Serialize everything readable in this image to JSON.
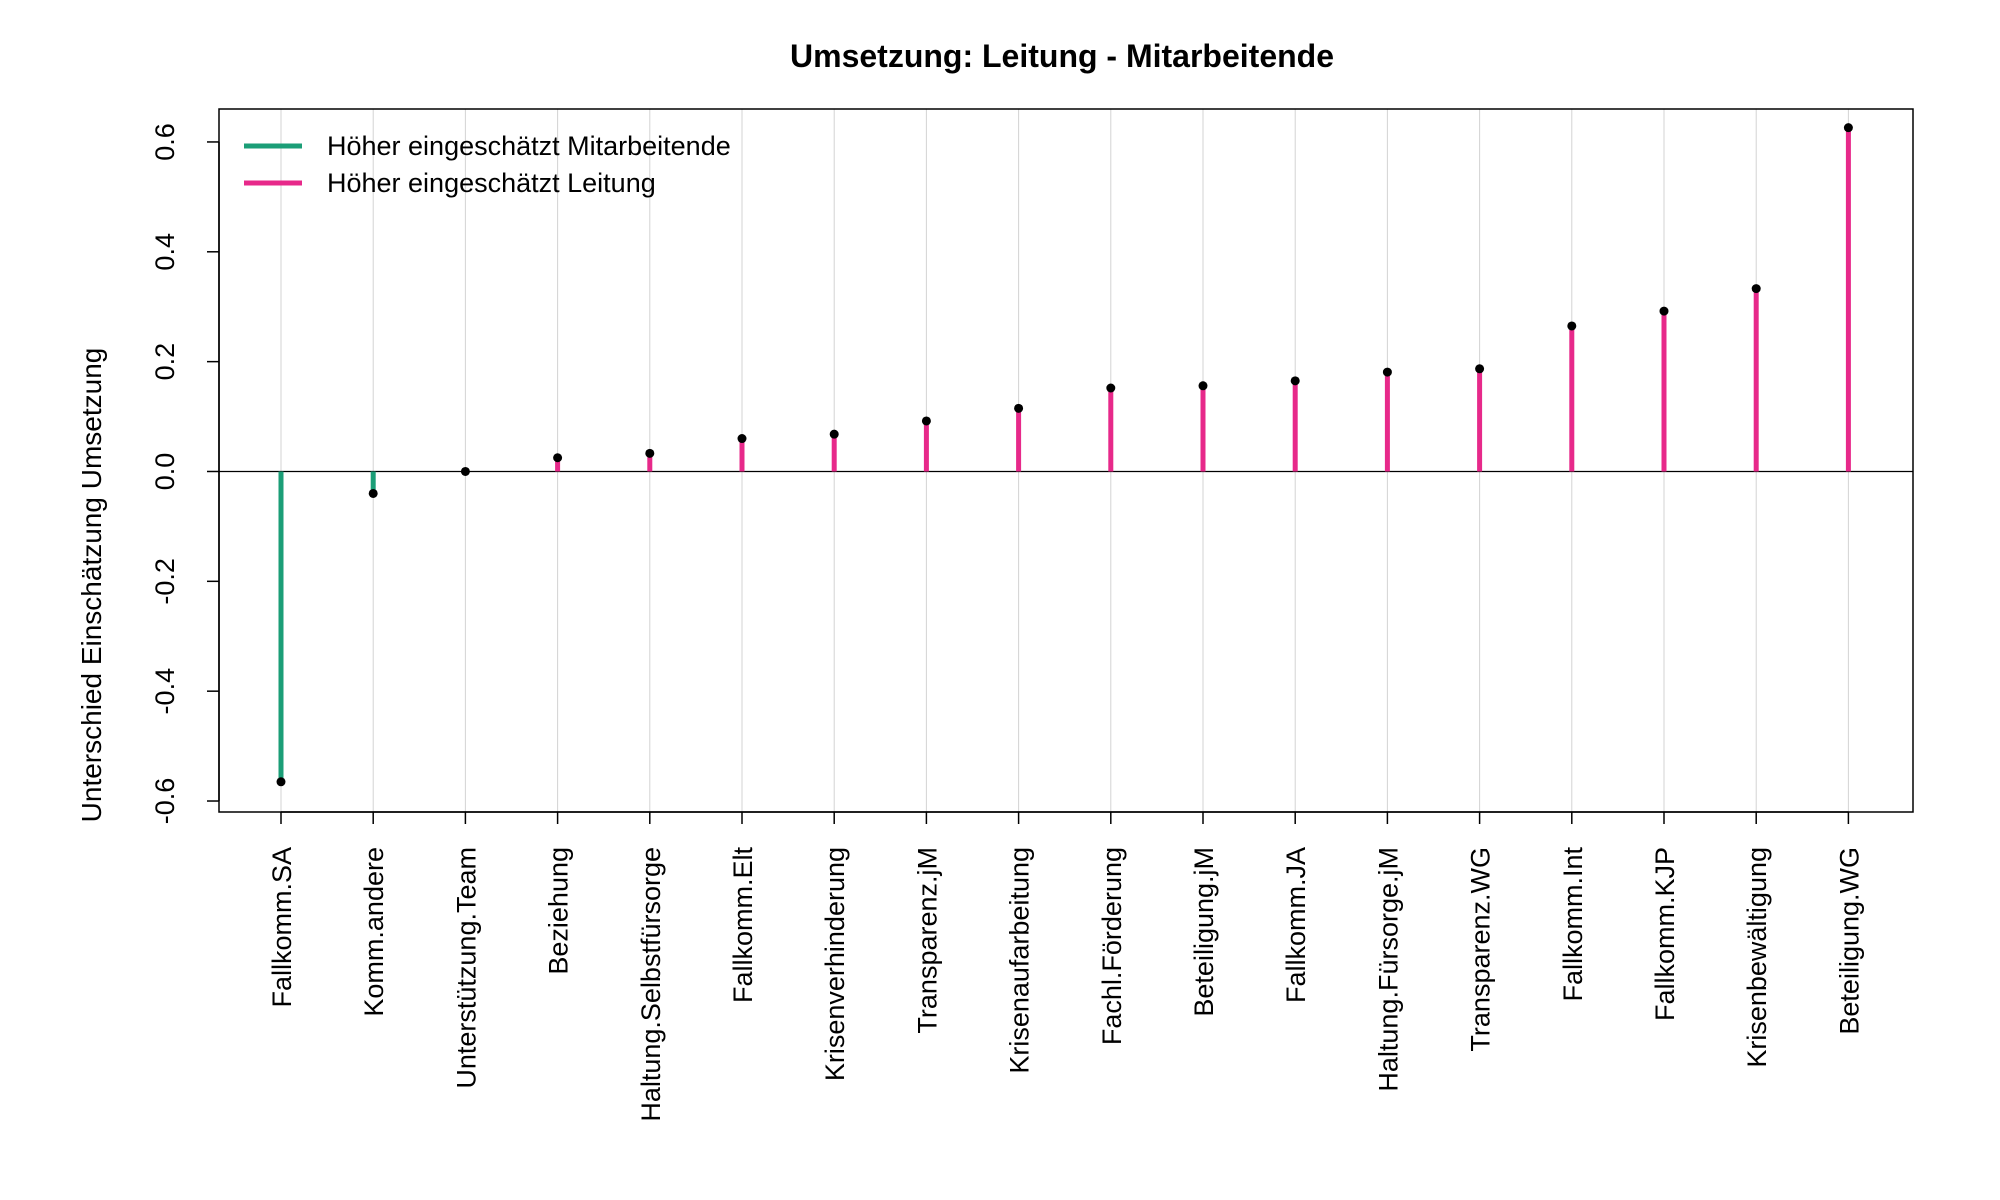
{
  "chart_data": {
    "type": "lollipop",
    "title": "Umsetzung: Leitung - Mitarbeitende",
    "xlabel": "",
    "ylabel": "Unterschied Einschätzung Umsetzung",
    "ylim": [
      -0.62,
      0.66
    ],
    "yticks": [
      -0.6,
      -0.4,
      -0.2,
      0.0,
      0.2,
      0.4,
      0.6
    ],
    "ytick_labels": [
      "-0.6",
      "-0.4",
      "-0.2",
      "0.0",
      "0.2",
      "0.4",
      "0.6"
    ],
    "grid": "vertical",
    "categories": [
      "Fallkomm.SA",
      "Komm.andere",
      "Unterstützung.Team",
      "Beziehung",
      "Haltung.Selbstfürsorge",
      "Fallkomm.Elt",
      "Krisenverhinderung",
      "Transparenz.jM",
      "Krisenaufarbeitung",
      "Fachl.Förderung",
      "Beteiligung.jM",
      "Fallkomm.JA",
      "Haltung.Fürsorge.jM",
      "Transparenz.WG",
      "Fallkomm.Int",
      "Fallkomm.KJP",
      "Krisenbewältigung",
      "Beteiligung.WG"
    ],
    "values": [
      -0.565,
      -0.04,
      0.0,
      0.025,
      0.033,
      0.06,
      0.068,
      0.092,
      0.115,
      0.152,
      0.156,
      0.165,
      0.181,
      0.187,
      0.265,
      0.292,
      0.333,
      0.626
    ],
    "legend": {
      "position": "top-left",
      "entries": [
        {
          "label": "Höher eingeschätzt Mitarbeitende",
          "color": "#1b9e77"
        },
        {
          "label": "Höher eingeschätzt Leitung",
          "color": "#e7298a"
        }
      ]
    },
    "colors": {
      "negative": "#1b9e77",
      "positive": "#e7298a",
      "point": "#000000",
      "grid": "#d3d3d3",
      "zero_line": "#000000"
    }
  }
}
